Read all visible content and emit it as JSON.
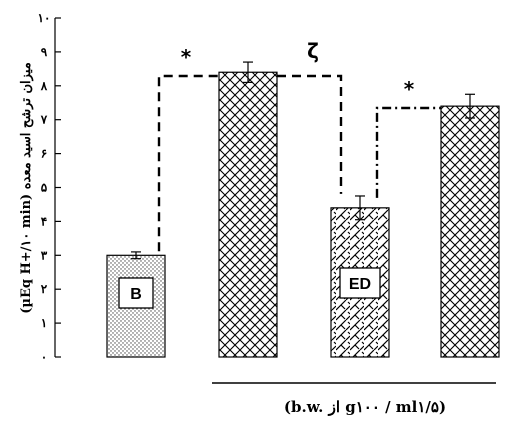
{
  "chart_data": {
    "type": "bar",
    "ylabel": "(µEq H+/۱۰ min) میزان ترشح اسید معده",
    "ylim": [
      0,
      10
    ],
    "yticks": [
      "۰",
      "۱",
      "۲",
      "۳",
      "۴",
      "۵",
      "۶",
      "۷",
      "۸",
      "۹",
      "۱۰"
    ],
    "bars": [
      {
        "label": "B",
        "value": 3.0,
        "error": 0.1,
        "pattern": "dots"
      },
      {
        "label": "",
        "value": 8.4,
        "error": 0.3,
        "pattern": "crosshatch"
      },
      {
        "label": "ED",
        "value": 4.4,
        "error": 0.35,
        "pattern": "brick"
      },
      {
        "label": "",
        "value": 7.4,
        "error": 0.35,
        "pattern": "crosshatch"
      }
    ],
    "significance": [
      {
        "symbol": "*",
        "from": 0,
        "to": 1,
        "style": "dashed"
      },
      {
        "symbol": "ζ",
        "from": 1,
        "to": 2,
        "style": "dashed"
      },
      {
        "symbol": "*",
        "from": 2,
        "to": 3,
        "style": "dashdot"
      }
    ],
    "dose_label": "(b.w. از g۱۰۰ / ml۱/۵)"
  }
}
